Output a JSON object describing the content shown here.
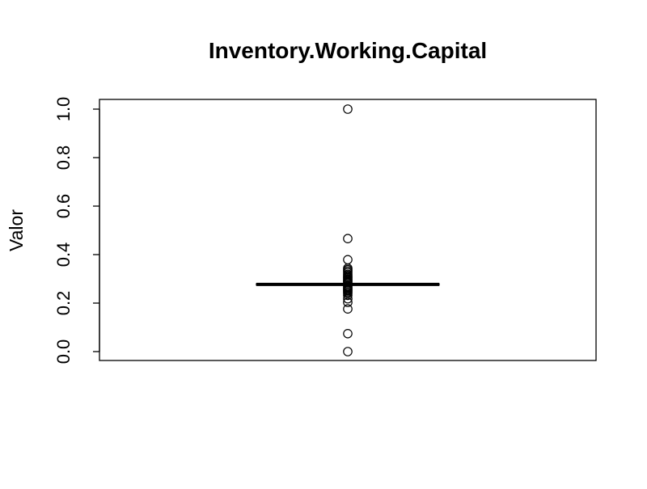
{
  "chart_data": {
    "type": "boxplot",
    "title": "Inventory.Working.Capital",
    "xlabel": "",
    "ylabel": "Valor",
    "ylim": [
      0.0,
      1.0
    ],
    "yticks": [
      0.0,
      0.2,
      0.4,
      0.6,
      0.8,
      1.0
    ],
    "ytick_labels": [
      "0.0",
      "0.2",
      "0.4",
      "0.6",
      "0.8",
      "1.0"
    ],
    "grid": false,
    "legend": "none",
    "box": {
      "q1": 0.274,
      "median": 0.277,
      "q3": 0.28
    },
    "outliers": [
      1.0,
      0.466,
      0.379,
      0.344,
      0.338,
      0.332,
      0.326,
      0.319,
      0.314,
      0.309,
      0.305,
      0.3,
      0.296,
      0.292,
      0.288,
      0.284,
      0.27,
      0.266,
      0.262,
      0.258,
      0.254,
      0.25,
      0.245,
      0.24,
      0.232,
      0.218,
      0.203,
      0.176,
      0.074,
      0.0
    ],
    "colors": {
      "line": "#000000",
      "background": "#ffffff"
    }
  }
}
